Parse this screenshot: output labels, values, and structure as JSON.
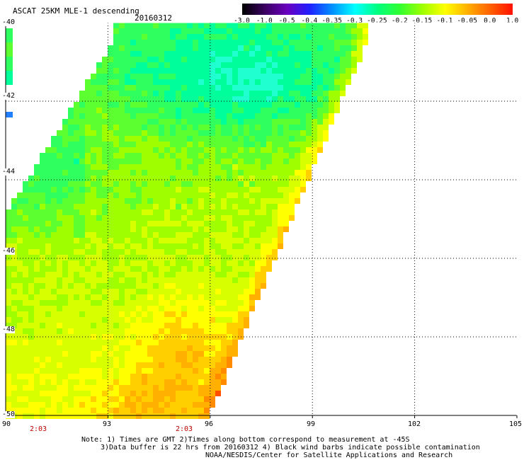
{
  "header": {
    "title": "ASCAT 25KM MLE-1 descending",
    "date": "20160312"
  },
  "colorbar": {
    "labels": [
      "-3.0",
      "-1.0",
      "-0.5",
      "-0.4",
      "-0.35",
      "-0.3",
      "-0.25",
      "-0.2",
      "-0.15",
      "-0.1",
      "-0.05",
      "0.0",
      "1.0"
    ],
    "colors": [
      "#000000",
      "#3a0060",
      "#6a00c0",
      "#2020ff",
      "#0090ff",
      "#00ffff",
      "#00ff80",
      "#30ff30",
      "#9fff00",
      "#ffff00",
      "#ffb000",
      "#ff6000",
      "#ff1000"
    ]
  },
  "map": {
    "lon_labels": [
      "90",
      "93",
      "96",
      "99",
      "102",
      "105"
    ],
    "lat_labels": [
      "-40",
      "-42",
      "-44",
      "-46",
      "-48",
      "-50"
    ],
    "time_labels": [
      "2:03",
      "2:03"
    ]
  },
  "notes": {
    "line1": "Note: 1) Times are GMT 2)Times along bottom correspond to measurement at -45S",
    "line2": "3)Data buffer is 22 hrs from 20160312 4) Black wind barbs indicate possible contamination",
    "line3": "NOAA/NESDIS/Center for Satellite Applications and Research"
  }
}
